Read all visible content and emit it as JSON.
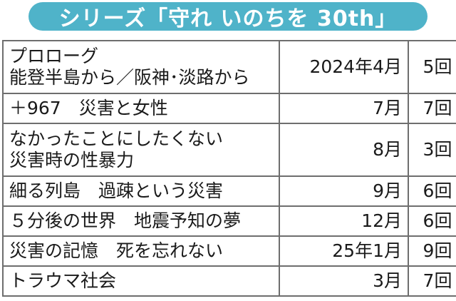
{
  "header": {
    "title": "シリーズ「守れ いのちを 30th」",
    "accent_color": "#4fb3c9"
  },
  "rows": [
    {
      "title_lines": [
        "プロローグ",
        "能登半島から／阪神･淡路から"
      ],
      "date": "2024年4月",
      "count": "5回"
    },
    {
      "title_lines": [
        "＋967　災害と女性"
      ],
      "date": "7月",
      "count": "7回"
    },
    {
      "title_lines": [
        "なかったことにしたくない",
        "災害時の性暴力"
      ],
      "date": "8月",
      "count": "3回"
    },
    {
      "title_lines": [
        "細る列島　過疎という災害"
      ],
      "date": "9月",
      "count": "6回"
    },
    {
      "title_lines": [
        "５分後の世界　地震予知の夢"
      ],
      "date": "12月",
      "count": "6回"
    },
    {
      "title_lines": [
        "災害の記憶　死を忘れない"
      ],
      "date": "25年1月",
      "count": "9回"
    },
    {
      "title_lines": [
        "トラウマ社会"
      ],
      "date": "3月",
      "count": "7回"
    }
  ]
}
